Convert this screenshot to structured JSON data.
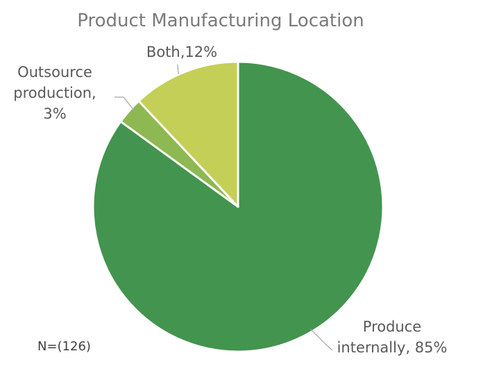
{
  "chart_data": {
    "type": "pie",
    "title": "Product Manufacturing Location",
    "slices": [
      {
        "name": "Produce internally",
        "value": 85,
        "label_lines": [
          "Produce",
          "internally, 85%"
        ],
        "color": "#43944f"
      },
      {
        "name": "Outsource production",
        "value": 3,
        "label_lines": [
          "Outsource",
          "production,",
          "3%"
        ],
        "color": "#8db852"
      },
      {
        "name": "Both",
        "value": 12,
        "label_lines": [
          "Both,12%"
        ],
        "color": "#c4cf58"
      }
    ],
    "note": "N=(126)"
  }
}
